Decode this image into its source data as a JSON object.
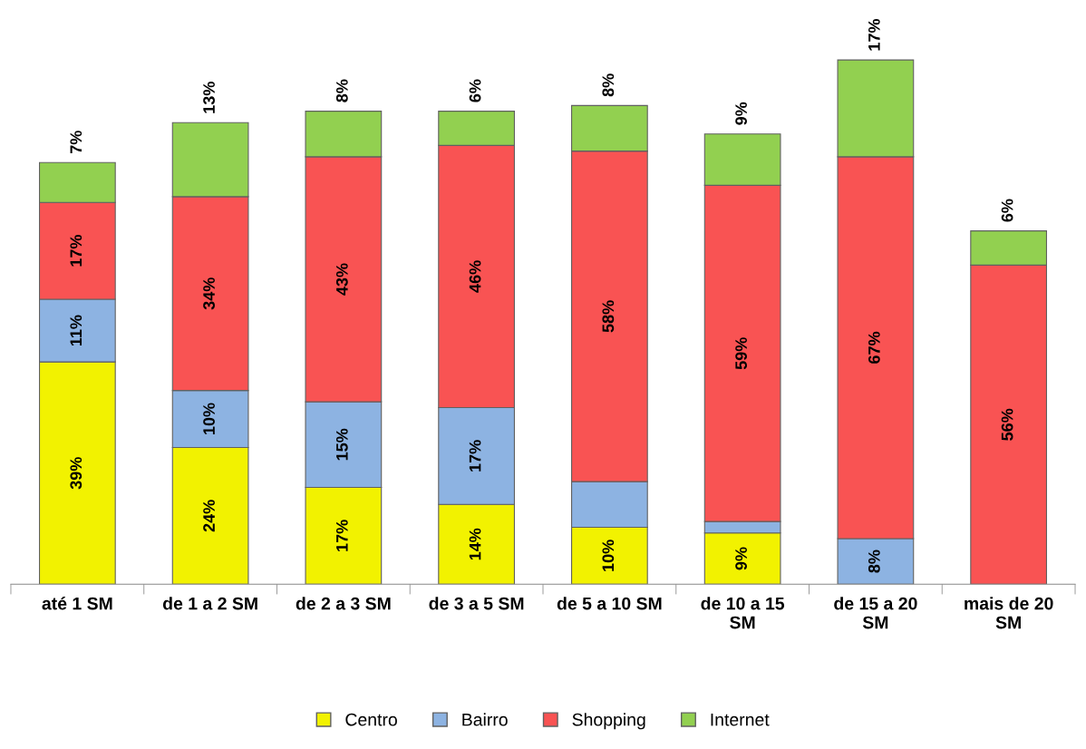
{
  "chart_data": {
    "type": "bar",
    "stacked": true,
    "categories": [
      "até 1 SM",
      "de 1 a 2 SM",
      "de 2 a 3 SM",
      "de 3 a 5 SM",
      "de 5 a 10 SM",
      "de 10 a 15\nSM",
      "de 15 a 20\nSM",
      "mais de 20\nSM"
    ],
    "series": [
      {
        "name": "Centro",
        "color": "#f2f200",
        "values": [
          39,
          24,
          17,
          14,
          10,
          9,
          null,
          null
        ],
        "value_labels": [
          "39%",
          "24%",
          "17%",
          "14%",
          "10%",
          "9%",
          null,
          null
        ]
      },
      {
        "name": "Bairro",
        "color": "#8db3e2",
        "values": [
          11,
          10,
          15,
          17,
          8,
          2,
          8,
          null
        ],
        "value_labels": [
          "11%",
          "10%",
          "15%",
          "17%",
          null,
          null,
          "8%",
          null
        ]
      },
      {
        "name": "Shopping",
        "color": "#f95353",
        "values": [
          17,
          34,
          43,
          46,
          58,
          59,
          67,
          56
        ],
        "value_labels": [
          "17%",
          "34%",
          "43%",
          "46%",
          "58%",
          "59%",
          "67%",
          "56%"
        ]
      },
      {
        "name": "Internet",
        "color": "#92d050",
        "values": [
          7,
          13,
          8,
          6,
          8,
          9,
          17,
          6
        ],
        "value_labels": [
          "7%",
          "13%",
          "8%",
          "6%",
          "8%",
          "9%",
          "17%",
          "6%"
        ]
      }
    ],
    "legend": "bottom"
  }
}
